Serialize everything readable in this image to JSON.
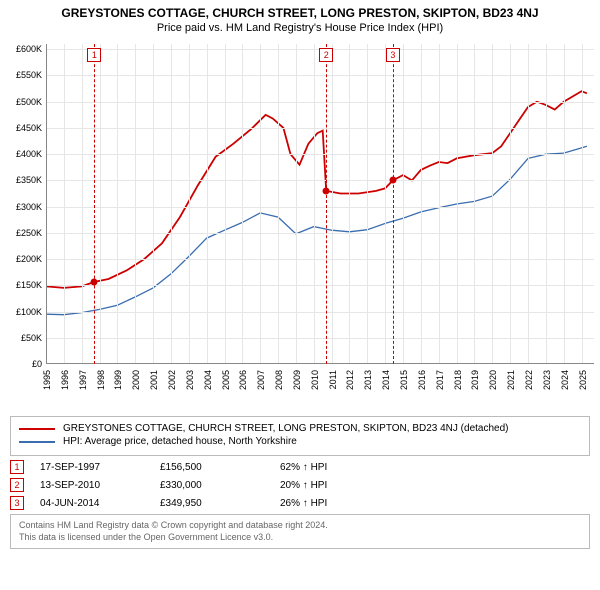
{
  "title": "GREYSTONES COTTAGE, CHURCH STREET, LONG PRESTON, SKIPTON, BD23 4NJ",
  "subtitle": "Price paid vs. HM Land Registry's House Price Index (HPI)",
  "chart": {
    "type": "line",
    "background_color": "#ffffff",
    "grid_color": "#e6e6e6",
    "axis_color": "#888888",
    "x_years": [
      1995,
      1996,
      1997,
      1998,
      1999,
      2000,
      2001,
      2002,
      2003,
      2004,
      2005,
      2006,
      2007,
      2008,
      2009,
      2010,
      2011,
      2012,
      2013,
      2014,
      2015,
      2016,
      2017,
      2018,
      2019,
      2020,
      2021,
      2022,
      2023,
      2024,
      2025
    ],
    "xlim": [
      1995,
      2025.7
    ],
    "y_ticks": [
      0,
      50000,
      100000,
      150000,
      200000,
      250000,
      300000,
      350000,
      400000,
      450000,
      500000,
      550000,
      600000
    ],
    "y_tick_labels": [
      "£0",
      "£50K",
      "£100K",
      "£150K",
      "£200K",
      "£250K",
      "£300K",
      "£350K",
      "£400K",
      "£450K",
      "£500K",
      "£550K",
      "£600K"
    ],
    "ylim": [
      0,
      610000
    ],
    "label_fontsize": 9,
    "series": [
      {
        "name": "property",
        "label": "GREYSTONES COTTAGE, CHURCH STREET, LONG PRESTON, SKIPTON, BD23 4NJ (detached)",
        "color": "#cc0000",
        "line_width": 1.8,
        "data": [
          [
            1995.0,
            148000
          ],
          [
            1996.0,
            145000
          ],
          [
            1997.0,
            148000
          ],
          [
            1997.71,
            156500
          ],
          [
            1998.5,
            162000
          ],
          [
            1999.5,
            178000
          ],
          [
            2000.5,
            200000
          ],
          [
            2001.5,
            230000
          ],
          [
            2002.5,
            280000
          ],
          [
            2003.5,
            340000
          ],
          [
            2004.5,
            395000
          ],
          [
            2005.5,
            420000
          ],
          [
            2006.5,
            448000
          ],
          [
            2007.3,
            475000
          ],
          [
            2007.7,
            468000
          ],
          [
            2008.3,
            450000
          ],
          [
            2008.7,
            400000
          ],
          [
            2009.2,
            380000
          ],
          [
            2009.7,
            420000
          ],
          [
            2010.2,
            440000
          ],
          [
            2010.5,
            445000
          ],
          [
            2010.7,
            330000
          ],
          [
            2011.5,
            325000
          ],
          [
            2012.5,
            325000
          ],
          [
            2013.5,
            330000
          ],
          [
            2014.0,
            335000
          ],
          [
            2014.43,
            349950
          ],
          [
            2015.0,
            360000
          ],
          [
            2015.5,
            350000
          ],
          [
            2016.0,
            370000
          ],
          [
            2016.5,
            378000
          ],
          [
            2017.0,
            385000
          ],
          [
            2017.5,
            383000
          ],
          [
            2018.0,
            392000
          ],
          [
            2018.5,
            395000
          ],
          [
            2019.0,
            398000
          ],
          [
            2019.5,
            400000
          ],
          [
            2020.0,
            402000
          ],
          [
            2020.5,
            415000
          ],
          [
            2021.0,
            440000
          ],
          [
            2021.5,
            465000
          ],
          [
            2022.0,
            490000
          ],
          [
            2022.5,
            500000
          ],
          [
            2023.0,
            494000
          ],
          [
            2023.5,
            485000
          ],
          [
            2024.0,
            500000
          ],
          [
            2024.5,
            510000
          ],
          [
            2025.0,
            520000
          ],
          [
            2025.3,
            516000
          ]
        ]
      },
      {
        "name": "hpi",
        "label": "HPI: Average price, detached house, North Yorkshire",
        "color": "#3a6db0",
        "line_width": 1.3,
        "data": [
          [
            1995.0,
            95000
          ],
          [
            1996.0,
            94000
          ],
          [
            1997.0,
            98000
          ],
          [
            1998.0,
            104000
          ],
          [
            1999.0,
            112000
          ],
          [
            2000.0,
            128000
          ],
          [
            2001.0,
            145000
          ],
          [
            2002.0,
            172000
          ],
          [
            2003.0,
            205000
          ],
          [
            2004.0,
            240000
          ],
          [
            2005.0,
            255000
          ],
          [
            2006.0,
            270000
          ],
          [
            2007.0,
            288000
          ],
          [
            2008.0,
            280000
          ],
          [
            2009.0,
            248000
          ],
          [
            2010.0,
            262000
          ],
          [
            2011.0,
            255000
          ],
          [
            2012.0,
            252000
          ],
          [
            2013.0,
            256000
          ],
          [
            2014.0,
            268000
          ],
          [
            2015.0,
            278000
          ],
          [
            2016.0,
            290000
          ],
          [
            2017.0,
            298000
          ],
          [
            2018.0,
            305000
          ],
          [
            2019.0,
            310000
          ],
          [
            2020.0,
            320000
          ],
          [
            2021.0,
            352000
          ],
          [
            2022.0,
            392000
          ],
          [
            2023.0,
            400000
          ],
          [
            2024.0,
            402000
          ],
          [
            2025.0,
            412000
          ],
          [
            2025.3,
            415000
          ]
        ]
      }
    ],
    "sale_markers": [
      {
        "x": 1997.71,
        "y": 156500,
        "color": "#cc0000",
        "size": 7
      },
      {
        "x": 2010.7,
        "y": 330000,
        "color": "#cc0000",
        "size": 7
      },
      {
        "x": 2014.43,
        "y": 349950,
        "color": "#cc0000",
        "size": 7
      }
    ],
    "event_lines": [
      {
        "x": 1997.71,
        "label": "1",
        "color": "#cc0000"
      },
      {
        "x": 2010.7,
        "label": "2",
        "color": "#cc0000"
      },
      {
        "x": 2014.43,
        "label": "3",
        "color": "#cc0000"
      }
    ]
  },
  "legend": {
    "border_color": "#bbbbbb",
    "items": [
      {
        "color": "#cc0000",
        "label": "GREYSTONES COTTAGE, CHURCH STREET, LONG PRESTON, SKIPTON, BD23 4NJ (detached)"
      },
      {
        "color": "#3a6db0",
        "label": "HPI: Average price, detached house, North Yorkshire"
      }
    ]
  },
  "sales": [
    {
      "badge": "1",
      "badge_color": "#cc0000",
      "date": "17-SEP-1997",
      "price": "£156,500",
      "delta": "62% ↑ HPI"
    },
    {
      "badge": "2",
      "badge_color": "#cc0000",
      "date": "13-SEP-2010",
      "price": "£330,000",
      "delta": "20% ↑ HPI"
    },
    {
      "badge": "3",
      "badge_color": "#cc0000",
      "date": "04-JUN-2014",
      "price": "£349,950",
      "delta": "26% ↑ HPI"
    }
  ],
  "footer": {
    "line1": "Contains HM Land Registry data © Crown copyright and database right 2024.",
    "line2": "This data is licensed under the Open Government Licence v3.0.",
    "border_color": "#bbbbbb",
    "text_color": "#666666"
  }
}
